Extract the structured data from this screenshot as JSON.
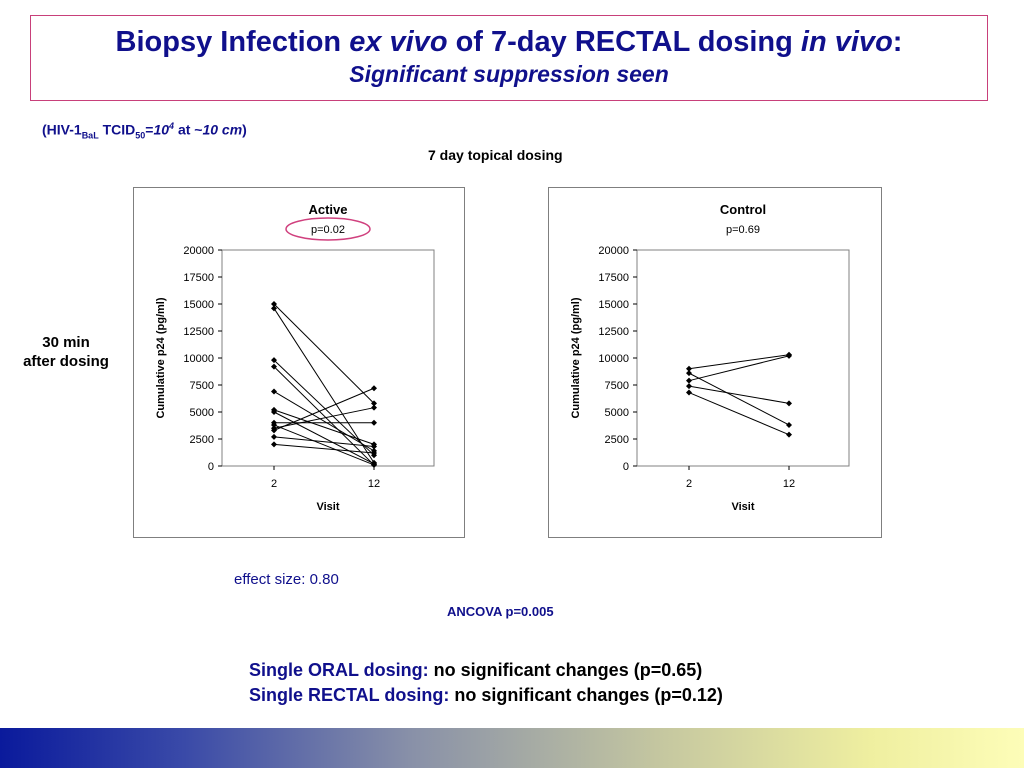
{
  "header": {
    "title_part1": "Biopsy Infection ",
    "title_italic1": "ex vivo",
    "title_part2": " of 7-day RECTAL dosing ",
    "title_italic2": "in vivo",
    "title_part3": ":",
    "subtitle": "Significant suppression seen"
  },
  "note": {
    "open": "(HIV-1",
    "sub1": "BaL",
    "mid": " TCID",
    "sub2": "50",
    "eq": "=",
    "base": "10",
    "exp": "4",
    "at": " at ~",
    "dist": "10 cm",
    "close": ")"
  },
  "figure_title": "7 day topical dosing",
  "side_label": {
    "line1": "30 min",
    "line2": "after dosing"
  },
  "annotations": {
    "effect_size": "effect size: 0.80",
    "ancova": "ANCOVA p=0.005",
    "highlight_color": "#d0407e"
  },
  "findings": [
    {
      "label": "Single ORAL dosing:",
      "text": " no significant changes (p=0.65)"
    },
    {
      "label": "Single RECTAL dosing:",
      "text": " no significant changes (p=0.12)"
    }
  ],
  "chart_data": [
    {
      "type": "line",
      "title": "Active",
      "subtitle": "p=0.02",
      "xlabel": "Visit",
      "ylabel": "Cumulative p24 (pg/ml)",
      "categories": [
        "2",
        "12"
      ],
      "ylim": [
        0,
        20000
      ],
      "yticks": [
        0,
        2500,
        5000,
        7500,
        10000,
        12500,
        15000,
        17500,
        20000
      ],
      "ytick_labels": [
        "0",
        "2500",
        "5000",
        "7500",
        "10000",
        "12500",
        "15000",
        "17500",
        "20000"
      ],
      "series": [
        {
          "values": [
            15000,
            5800
          ]
        },
        {
          "values": [
            14600,
            300
          ]
        },
        {
          "values": [
            9800,
            1000
          ]
        },
        {
          "values": [
            9200,
            100
          ]
        },
        {
          "values": [
            6900,
            1400
          ]
        },
        {
          "values": [
            5200,
            2000
          ]
        },
        {
          "values": [
            5000,
            200
          ]
        },
        {
          "values": [
            4000,
            4000
          ]
        },
        {
          "values": [
            3800,
            100
          ]
        },
        {
          "values": [
            3500,
            5400
          ]
        },
        {
          "values": [
            3300,
            7200
          ]
        },
        {
          "values": [
            2700,
            1800
          ]
        },
        {
          "values": [
            2000,
            1200
          ]
        }
      ]
    },
    {
      "type": "line",
      "title": "Control",
      "subtitle": "p=0.69",
      "xlabel": "Visit",
      "ylabel": "Cumulative p24 (pg/ml)",
      "categories": [
        "2",
        "12"
      ],
      "ylim": [
        0,
        20000
      ],
      "yticks": [
        0,
        2500,
        5000,
        7500,
        10000,
        12500,
        15000,
        17500,
        20000
      ],
      "ytick_labels": [
        "0",
        "2500",
        "5000",
        "7500",
        "10000",
        "12500",
        "15000",
        "17500",
        "20000"
      ],
      "series": [
        {
          "values": [
            9000,
            10300
          ]
        },
        {
          "values": [
            8600,
            3800
          ]
        },
        {
          "values": [
            7900,
            10200
          ]
        },
        {
          "values": [
            7400,
            5800
          ]
        },
        {
          "values": [
            6800,
            2900
          ]
        }
      ]
    }
  ]
}
